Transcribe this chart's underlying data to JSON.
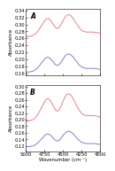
{
  "panel_A_label": "A",
  "panel_B_label": "B",
  "xlabel": "Wavenumber (cm⁻¹)",
  "ylabel": "Absorbance",
  "red_color": "#e88080",
  "blue_color": "#8080cc",
  "bg_color": "#ffffff",
  "linewidth": 0.7,
  "tick_fontsize": 3.8,
  "label_fontsize": 3.8,
  "panel_label_fontsize": 5.5,
  "panel_A": {
    "ylim": [
      0.155,
      0.345
    ],
    "yticks": [
      0.34,
      0.32,
      0.3,
      0.28,
      0.26,
      0.24,
      0.22,
      0.2,
      0.18,
      0.16
    ]
  },
  "panel_B": {
    "ylim": [
      0.105,
      0.305
    ],
    "yticks": [
      0.3,
      0.28,
      0.26,
      0.24,
      0.22,
      0.2,
      0.18,
      0.16,
      0.14,
      0.12
    ]
  },
  "xticks": [
    5000,
    4750,
    4500,
    4250,
    4000
  ],
  "xticklabels": [
    "5000",
    "4750",
    "4500",
    "4250",
    "4000"
  ]
}
